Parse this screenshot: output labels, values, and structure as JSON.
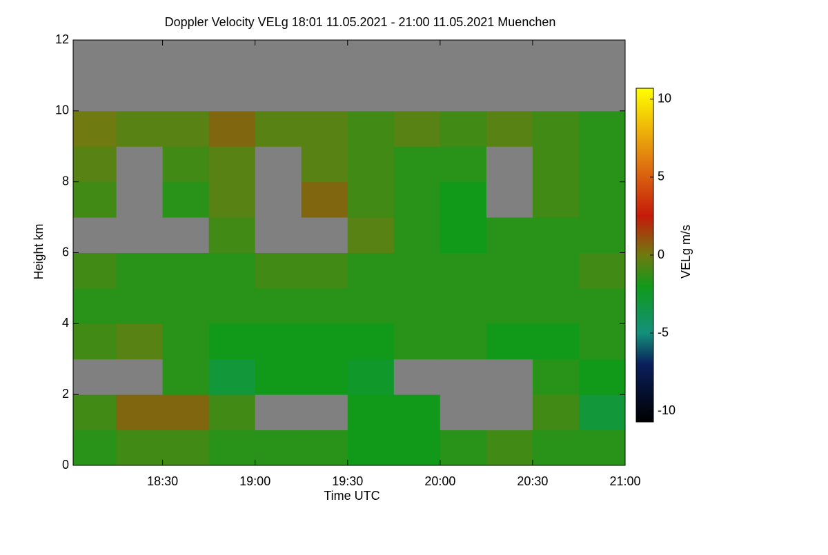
{
  "chart_data": {
    "type": "heatmap",
    "title": "Doppler Velocity VELg   18:01 11.05.2021 - 21:00 11.05.2021 Muenchen",
    "x_label": "Time UTC",
    "y_label": "Height km",
    "colorbar_label": "VELg m/s",
    "x": [
      18.125,
      18.375,
      18.625,
      18.875,
      19.125,
      19.375,
      19.625,
      19.875,
      20.125,
      20.375,
      20.625,
      20.875
    ],
    "y": [
      0.5,
      1.5,
      2.5,
      3.5,
      4.5,
      5.5,
      6.5,
      7.5,
      8.5,
      9.5,
      10.5,
      11.5
    ],
    "values": [
      [
        -1.5,
        -1,
        -1,
        -1.5,
        -1.5,
        -1.5,
        -2,
        -2,
        -1.5,
        -1,
        -1.5,
        -1.5
      ],
      [
        -1,
        0.5,
        0.5,
        -1,
        null,
        null,
        -2,
        -2,
        null,
        null,
        -1,
        -3
      ],
      [
        null,
        null,
        -1.5,
        -3,
        -2,
        -2,
        -2.5,
        null,
        null,
        null,
        -1.5,
        -2
      ],
      [
        -1,
        -0.5,
        -1.5,
        -2,
        -2,
        -2,
        -2,
        -1.5,
        -1.5,
        -2,
        -2,
        -1.5
      ],
      [
        -1.5,
        -1.5,
        -1.5,
        -1.5,
        -1.5,
        -1.5,
        -1.5,
        -1.5,
        -1.5,
        -1.5,
        -1.5,
        -1.5
      ],
      [
        -1,
        -1.5,
        -1.5,
        -1.5,
        -1,
        -1,
        -1.5,
        -1.5,
        -1.5,
        -1.5,
        -1.5,
        -1
      ],
      [
        null,
        null,
        null,
        -1,
        null,
        null,
        -0.5,
        -1.5,
        -2,
        -1.5,
        -1.5,
        -1.5
      ],
      [
        -1,
        null,
        -1.5,
        -0.5,
        null,
        0.5,
        -1,
        -1.5,
        -2,
        null,
        -1,
        -1.5
      ],
      [
        -0.5,
        null,
        -1,
        -0.5,
        null,
        -0.5,
        -1,
        -1.5,
        -1.5,
        null,
        -1,
        -1.5
      ],
      [
        0,
        -0.5,
        -0.5,
        0.5,
        -0.5,
        -0.5,
        -1,
        -0.5,
        -1,
        -0.5,
        -1,
        -1.5
      ],
      [
        null,
        null,
        null,
        null,
        null,
        null,
        null,
        null,
        null,
        null,
        null,
        null
      ],
      [
        null,
        null,
        null,
        null,
        null,
        null,
        null,
        null,
        null,
        null,
        null,
        null
      ]
    ],
    "missing_color": "#808080",
    "xlim": [
      18.0167,
      21
    ],
    "xticks": [
      {
        "value": 18.5,
        "label": "18:30"
      },
      {
        "value": 19,
        "label": "19:00"
      },
      {
        "value": 19.5,
        "label": "19:30"
      },
      {
        "value": 20,
        "label": "20:00"
      },
      {
        "value": 20.5,
        "label": "20:30"
      },
      {
        "value": 21,
        "label": "21:00"
      }
    ],
    "ylim": [
      0,
      12
    ],
    "yticks": [
      0,
      2,
      4,
      6,
      8,
      10,
      12
    ],
    "zlim": [
      -10.7,
      10.7
    ],
    "zticks": [
      -10,
      -5,
      0,
      5,
      10
    ],
    "colorscale": [
      [
        -10.7,
        "#000000"
      ],
      [
        -7,
        "#0a1f5c"
      ],
      [
        -5,
        "#13907a"
      ],
      [
        -2,
        "#119a1a"
      ],
      [
        0,
        "#6f7a10"
      ],
      [
        2.5,
        "#c51a0a"
      ],
      [
        6,
        "#e07a10"
      ],
      [
        10.7,
        "#ffff00"
      ]
    ]
  }
}
